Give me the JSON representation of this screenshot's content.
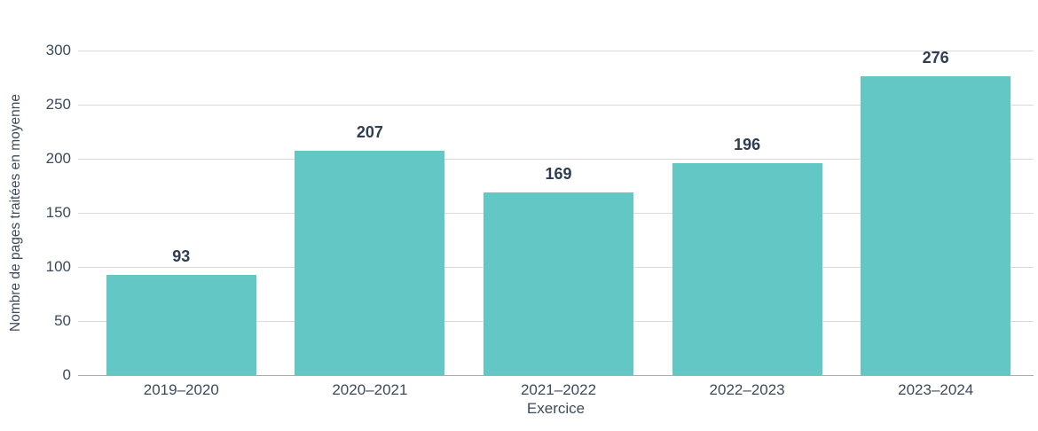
{
  "chart_data": {
    "type": "bar",
    "title": "",
    "categories": [
      "2019–2020",
      "2020–2021",
      "2021–2022",
      "2022–2023",
      "2023–2024"
    ],
    "values": [
      93,
      207,
      169,
      196,
      276
    ],
    "value_labels": [
      "93",
      "207",
      "169",
      "196",
      "276"
    ],
    "xlabel": "Exercice",
    "ylabel": "Nombre de pages traitées en moyenne",
    "ylim": [
      0,
      300
    ],
    "yticks": [
      0,
      50,
      100,
      150,
      200,
      250,
      300
    ],
    "grid": "horizontal-only",
    "legend": "none",
    "colors": {
      "bar": "#62C7C5",
      "axis_text": "#3C4A5A",
      "value_label": "#2E3D4F",
      "gridline": "#DBDBDB",
      "baseline": "#ACACAC",
      "background": "#FFFFFF"
    }
  }
}
